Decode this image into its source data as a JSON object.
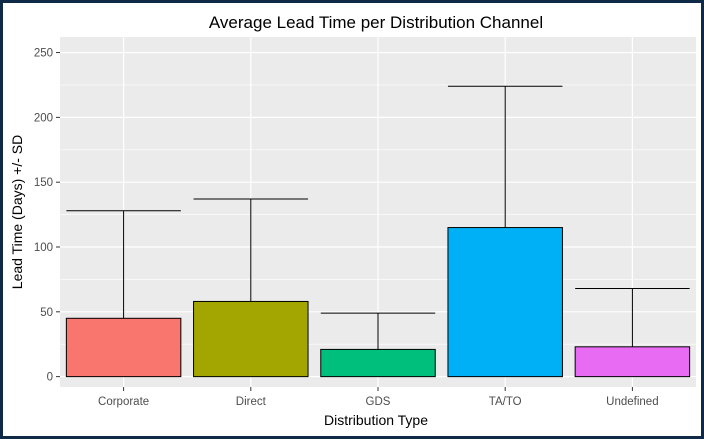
{
  "chart_data": {
    "type": "bar",
    "title": "Average Lead Time per Distribution Channel",
    "xlabel": "Distribution Type",
    "ylabel": "Lead Time (Days) +/- SD",
    "categories": [
      "Corporate",
      "Direct",
      "GDS",
      "TA/TO",
      "Undefined"
    ],
    "values": [
      45,
      58,
      21,
      115,
      23
    ],
    "error_upper": [
      128,
      137,
      49,
      224,
      68
    ],
    "colors": [
      "#F8766D",
      "#A3A500",
      "#00BF7D",
      "#00B0F6",
      "#E76BF3"
    ],
    "ylim": [
      -8,
      262
    ],
    "yticks": [
      0,
      50,
      100,
      150,
      200,
      250
    ],
    "grid": true,
    "panel_background": "#EBEBEB",
    "grid_color": "#FFFFFF"
  }
}
